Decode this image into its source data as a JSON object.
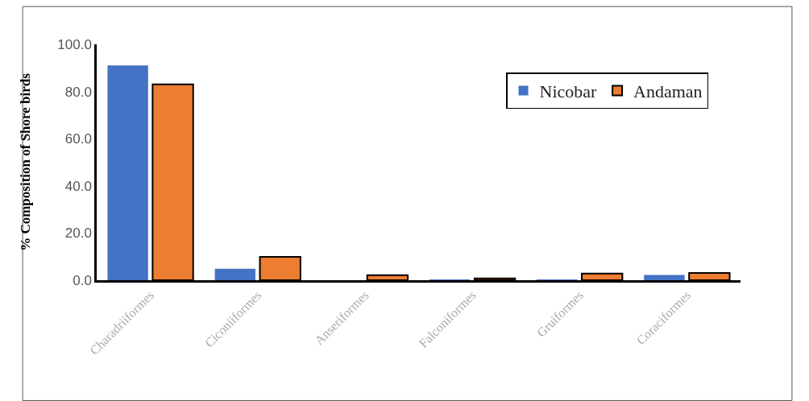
{
  "chart_data": {
    "type": "bar",
    "ylabel": "% Composition of Shore birds",
    "categories": [
      "Charadriiformes",
      "Ciconiiformes",
      "Anseriformes",
      "Falconiformes",
      "Gruiformes",
      "Coraciformes"
    ],
    "series": [
      {
        "name": "Nicobar",
        "color": "#4472c4",
        "values": [
          91.0,
          4.9,
          0.0,
          0.2,
          0.3,
          2.2
        ]
      },
      {
        "name": "Andaman",
        "color": "#ed7d31",
        "values": [
          83.0,
          9.9,
          2.1,
          0.8,
          2.8,
          3.1
        ]
      }
    ],
    "ylim": [
      0,
      100
    ],
    "yticks": [
      {
        "value": 0,
        "label": "0.0"
      },
      {
        "value": 20,
        "label": "20.0"
      },
      {
        "value": 40,
        "label": "40.0"
      },
      {
        "value": 60,
        "label": "60.0"
      },
      {
        "value": 80,
        "label": "80.0"
      },
      {
        "value": 100,
        "label": "100.0"
      }
    ],
    "legend": "top right"
  }
}
